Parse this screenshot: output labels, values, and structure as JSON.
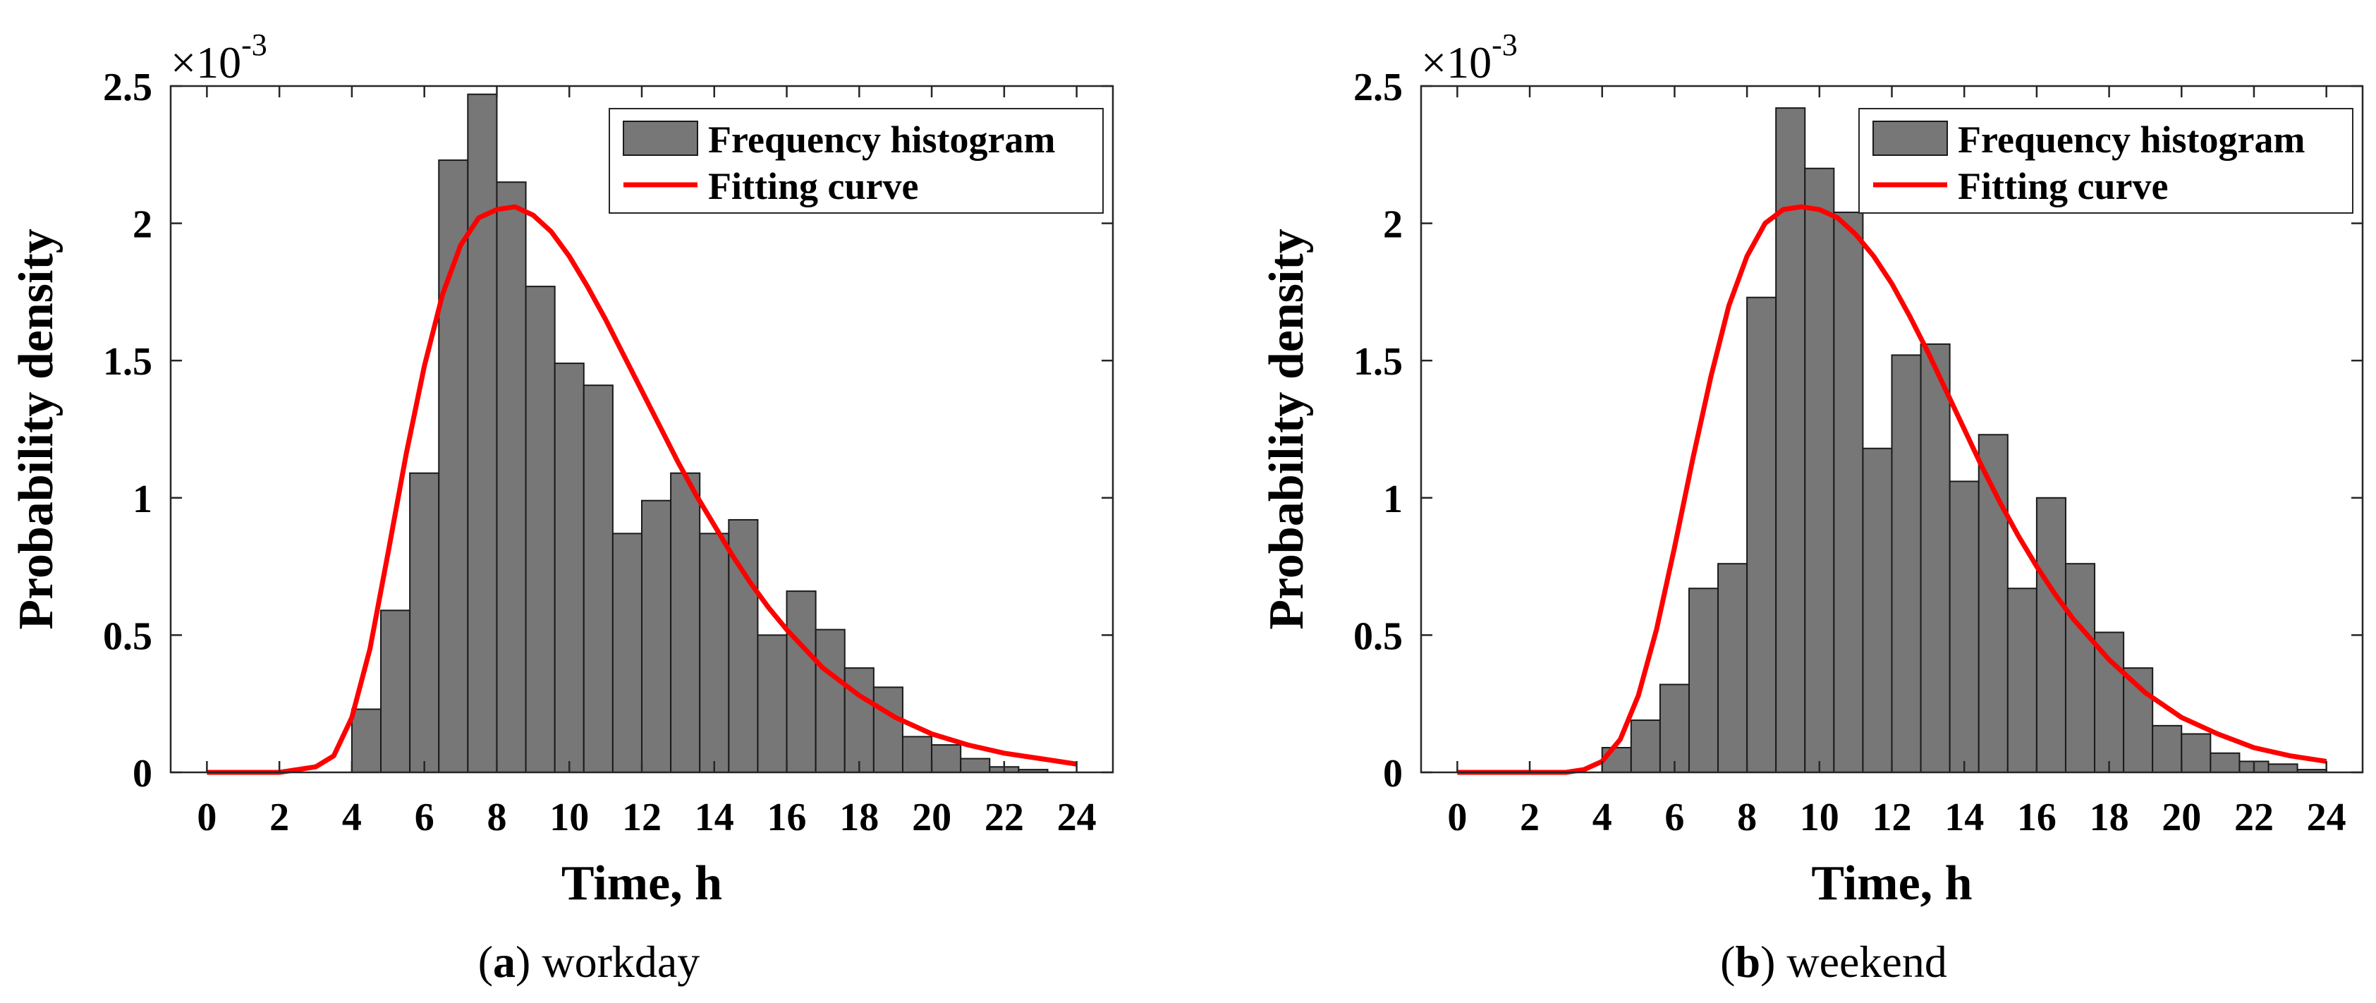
{
  "figure": {
    "captions": [
      {
        "letter": "a",
        "text": "workday"
      },
      {
        "letter": "b",
        "text": "weekend"
      }
    ]
  },
  "chart_data": [
    {
      "type": "bar",
      "panel": "a",
      "xlabel": "Time, h",
      "ylabel": "Probability density",
      "y_multiplier_base": "×10",
      "y_multiplier_exp": "-3",
      "xlim": [
        -1,
        25
      ],
      "ylim": [
        0,
        2.5
      ],
      "xticks": [
        0,
        2,
        4,
        6,
        8,
        10,
        12,
        14,
        16,
        18,
        20,
        22,
        24
      ],
      "yticks": [
        0,
        0.5,
        1,
        1.5,
        2,
        2.5
      ],
      "ytick_labels": [
        "0",
        "0.5",
        "1",
        "1.5",
        "2",
        "2.5"
      ],
      "grid": false,
      "legend_position": "top-right",
      "bar_color": "#777777",
      "curve_color": "#ff0000",
      "series": [
        {
          "name": "Frequency histogram",
          "kind": "histogram",
          "bins": [
            [
              4.0,
              4.8,
              0.23
            ],
            [
              4.8,
              5.6,
              0.59
            ],
            [
              5.6,
              6.4,
              1.09
            ],
            [
              6.4,
              7.2,
              2.23
            ],
            [
              7.2,
              8.0,
              2.47
            ],
            [
              8.0,
              8.8,
              2.15
            ],
            [
              8.8,
              9.6,
              1.77
            ],
            [
              9.6,
              10.4,
              1.49
            ],
            [
              10.4,
              11.2,
              1.41
            ],
            [
              11.2,
              12.0,
              0.87
            ],
            [
              12.0,
              12.8,
              0.99
            ],
            [
              12.8,
              13.6,
              1.09
            ],
            [
              13.6,
              14.4,
              0.87
            ],
            [
              14.4,
              15.2,
              0.92
            ],
            [
              15.2,
              16.0,
              0.5
            ],
            [
              16.0,
              16.8,
              0.66
            ],
            [
              16.8,
              17.6,
              0.52
            ],
            [
              17.6,
              18.4,
              0.38
            ],
            [
              18.4,
              19.2,
              0.31
            ],
            [
              19.2,
              20.0,
              0.13
            ],
            [
              20.0,
              20.8,
              0.1
            ],
            [
              20.8,
              21.6,
              0.05
            ],
            [
              21.6,
              22.4,
              0.02
            ],
            [
              22.4,
              23.2,
              0.01
            ]
          ]
        },
        {
          "name": "Fitting curve",
          "kind": "line",
          "x": [
            0,
            2,
            3,
            3.5,
            4,
            4.5,
            5,
            5.5,
            6,
            6.5,
            7,
            7.5,
            8,
            8.5,
            9,
            9.5,
            10,
            10.5,
            11,
            11.5,
            12,
            12.5,
            13,
            13.5,
            14,
            14.5,
            15,
            15.5,
            16,
            17,
            18,
            19,
            20,
            21,
            22,
            23,
            24
          ],
          "y": [
            0,
            0,
            0.02,
            0.06,
            0.2,
            0.45,
            0.8,
            1.16,
            1.48,
            1.74,
            1.92,
            2.02,
            2.05,
            2.06,
            2.03,
            1.97,
            1.88,
            1.77,
            1.65,
            1.52,
            1.39,
            1.26,
            1.13,
            1.01,
            0.9,
            0.79,
            0.69,
            0.6,
            0.52,
            0.38,
            0.28,
            0.2,
            0.14,
            0.1,
            0.07,
            0.05,
            0.03
          ]
        }
      ]
    },
    {
      "type": "bar",
      "panel": "b",
      "xlabel": "Time, h",
      "ylabel": "Probability density",
      "y_multiplier_base": "×10",
      "y_multiplier_exp": "-3",
      "xlim": [
        -1,
        25
      ],
      "ylim": [
        0,
        2.5
      ],
      "xticks": [
        0,
        2,
        4,
        6,
        8,
        10,
        12,
        14,
        16,
        18,
        20,
        22,
        24
      ],
      "yticks": [
        0,
        0.5,
        1,
        1.5,
        2,
        2.5
      ],
      "ytick_labels": [
        "0",
        "0.5",
        "1",
        "1.5",
        "2",
        "2.5"
      ],
      "grid": false,
      "legend_position": "top-right",
      "bar_color": "#777777",
      "curve_color": "#ff0000",
      "series": [
        {
          "name": "Frequency histogram",
          "kind": "histogram",
          "bins": [
            [
              4.0,
              4.8,
              0.09
            ],
            [
              4.8,
              5.6,
              0.19
            ],
            [
              5.6,
              6.4,
              0.32
            ],
            [
              6.4,
              7.2,
              0.67
            ],
            [
              7.2,
              8.0,
              0.76
            ],
            [
              8.0,
              8.8,
              1.73
            ],
            [
              8.8,
              9.6,
              2.42
            ],
            [
              9.6,
              10.4,
              2.2
            ],
            [
              10.4,
              11.2,
              2.04
            ],
            [
              11.2,
              12.0,
              1.18
            ],
            [
              12.0,
              12.8,
              1.52
            ],
            [
              12.8,
              13.6,
              1.56
            ],
            [
              13.6,
              14.4,
              1.06
            ],
            [
              14.4,
              15.2,
              1.23
            ],
            [
              15.2,
              16.0,
              0.67
            ],
            [
              16.0,
              16.8,
              1.0
            ],
            [
              16.8,
              17.6,
              0.76
            ],
            [
              17.6,
              18.4,
              0.51
            ],
            [
              18.4,
              19.2,
              0.38
            ],
            [
              19.2,
              20.0,
              0.17
            ],
            [
              20.0,
              20.8,
              0.14
            ],
            [
              20.8,
              21.6,
              0.07
            ],
            [
              21.6,
              22.4,
              0.04
            ],
            [
              22.4,
              23.2,
              0.03
            ],
            [
              23.2,
              24.0,
              0.01
            ]
          ]
        },
        {
          "name": "Fitting curve",
          "kind": "line",
          "x": [
            0,
            3,
            3.5,
            4,
            4.5,
            5,
            5.5,
            6,
            6.5,
            7,
            7.5,
            8,
            8.5,
            9,
            9.5,
            10,
            10.5,
            11,
            11.5,
            12,
            12.5,
            13,
            13.5,
            14,
            14.5,
            15,
            15.5,
            16,
            16.5,
            17,
            18,
            19,
            20,
            21,
            22,
            23,
            24
          ],
          "y": [
            0,
            0,
            0.01,
            0.04,
            0.12,
            0.28,
            0.52,
            0.82,
            1.14,
            1.44,
            1.7,
            1.88,
            2.0,
            2.05,
            2.06,
            2.05,
            2.02,
            1.96,
            1.88,
            1.78,
            1.66,
            1.53,
            1.39,
            1.25,
            1.11,
            0.98,
            0.86,
            0.75,
            0.65,
            0.56,
            0.41,
            0.29,
            0.2,
            0.14,
            0.09,
            0.06,
            0.04
          ]
        }
      ]
    }
  ]
}
